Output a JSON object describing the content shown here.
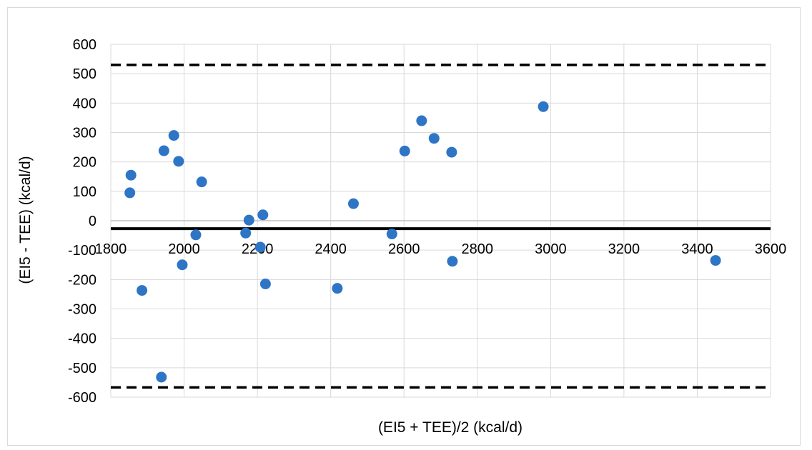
{
  "chart_data": {
    "type": "scatter",
    "title": "",
    "xlabel": "(EI5 + TEE)/2 (kcal/d)",
    "ylabel": "(EI5 - TEE) (kcal/d)",
    "xlim": [
      1800,
      3600
    ],
    "ylim": [
      -600,
      600
    ],
    "x_ticks": [
      "1800",
      "2000",
      "2200",
      "2400",
      "2600",
      "2800",
      "3000",
      "3200",
      "3400",
      "3600"
    ],
    "y_ticks": [
      "600",
      "500",
      "400",
      "300",
      "200",
      "100",
      "0",
      "-100",
      "-200",
      "-300",
      "-400",
      "-500",
      "-600"
    ],
    "grid": true,
    "legend": "none",
    "colors": {
      "points": "#2e75c5",
      "grid": "#d9d9d9",
      "lines": "#000000"
    },
    "mean_line": -27,
    "upper_limit": 530,
    "lower_limit": -567,
    "series": [
      {
        "points": [
          {
            "x": 1852,
            "y": 95
          },
          {
            "x": 1855,
            "y": 155
          },
          {
            "x": 1885,
            "y": -237
          },
          {
            "x": 1938,
            "y": -532
          },
          {
            "x": 1945,
            "y": 238
          },
          {
            "x": 1972,
            "y": 290
          },
          {
            "x": 1985,
            "y": 202
          },
          {
            "x": 1995,
            "y": -150
          },
          {
            "x": 2032,
            "y": -48
          },
          {
            "x": 2048,
            "y": 132
          },
          {
            "x": 2168,
            "y": -42
          },
          {
            "x": 2177,
            "y": 2
          },
          {
            "x": 2208,
            "y": -90
          },
          {
            "x": 2215,
            "y": 20
          },
          {
            "x": 2222,
            "y": -215
          },
          {
            "x": 2418,
            "y": -230
          },
          {
            "x": 2462,
            "y": 58
          },
          {
            "x": 2567,
            "y": -45
          },
          {
            "x": 2602,
            "y": 237
          },
          {
            "x": 2648,
            "y": 340
          },
          {
            "x": 2682,
            "y": 280
          },
          {
            "x": 2730,
            "y": 233
          },
          {
            "x": 2732,
            "y": -138
          },
          {
            "x": 2980,
            "y": 388
          },
          {
            "x": 3450,
            "y": -135
          }
        ]
      }
    ]
  }
}
